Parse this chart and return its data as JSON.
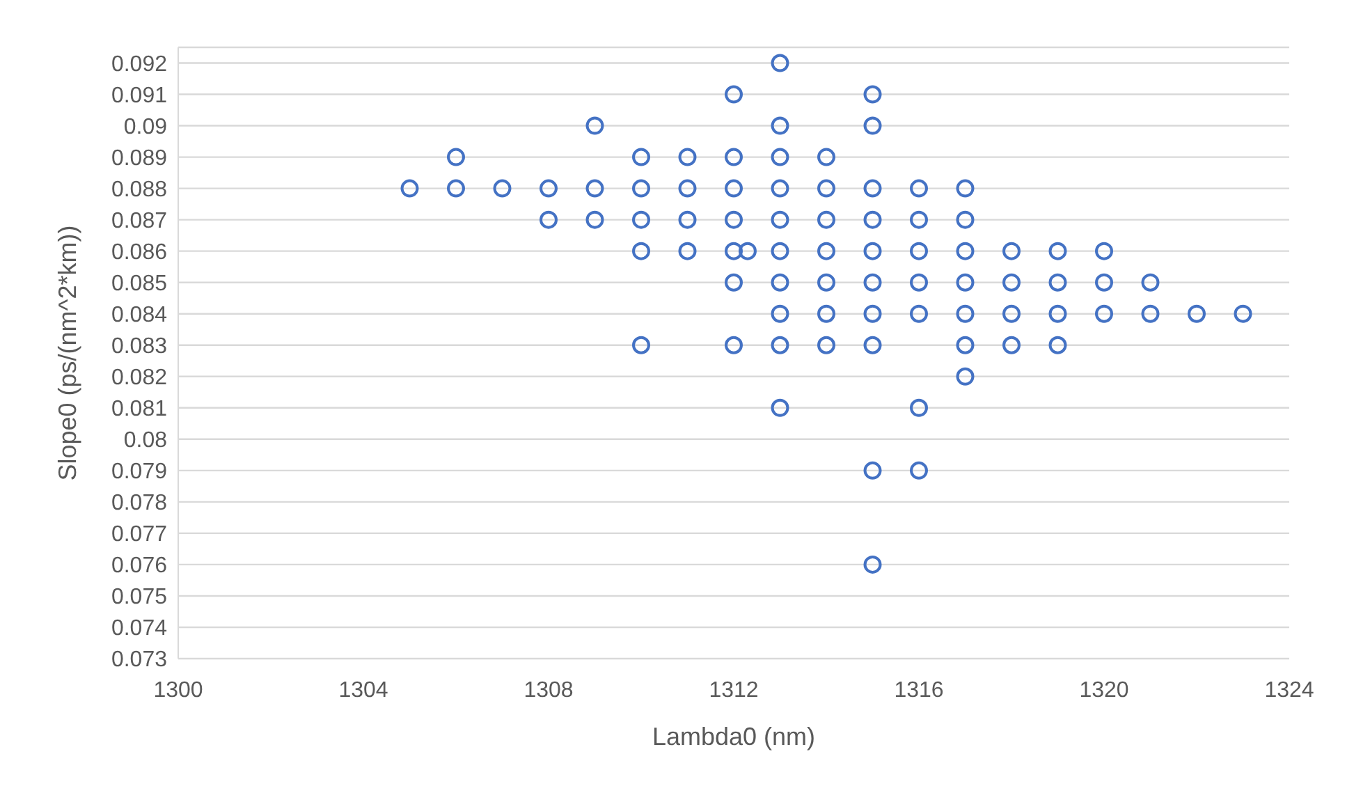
{
  "chart_data": {
    "type": "scatter",
    "xlabel": "Lambda0 (nm)",
    "ylabel": "Slope0 (ps/(nm^2*km))",
    "x": [
      1313,
      1312,
      1315,
      1309,
      1313,
      1315,
      1306,
      1310,
      1311,
      1312,
      1313,
      1314,
      1305,
      1306,
      1307,
      1308,
      1309,
      1310,
      1311,
      1312,
      1313,
      1314,
      1315,
      1316,
      1317,
      1308,
      1309,
      1310,
      1311,
      1312,
      1313,
      1314,
      1315,
      1316,
      1317,
      1310,
      1311,
      1312,
      1312.3,
      1313,
      1314,
      1315,
      1316,
      1317,
      1318,
      1319,
      1320,
      1312,
      1313,
      1314,
      1315,
      1316,
      1317,
      1318,
      1319,
      1320,
      1321,
      1313,
      1314,
      1315,
      1316,
      1317,
      1318,
      1319,
      1320,
      1321,
      1322,
      1323,
      1310,
      1312,
      1313,
      1314,
      1315,
      1317,
      1318,
      1319,
      1317,
      1313,
      1316,
      1315,
      1316,
      1315
    ],
    "series": [
      {
        "color": "#4472c4",
        "values": [
          0.092,
          0.091,
          0.091,
          0.09,
          0.09,
          0.09,
          0.089,
          0.089,
          0.089,
          0.089,
          0.089,
          0.089,
          0.088,
          0.088,
          0.088,
          0.088,
          0.088,
          0.088,
          0.088,
          0.088,
          0.088,
          0.088,
          0.088,
          0.088,
          0.088,
          0.087,
          0.087,
          0.087,
          0.087,
          0.087,
          0.087,
          0.087,
          0.087,
          0.087,
          0.087,
          0.086,
          0.086,
          0.086,
          0.086,
          0.086,
          0.086,
          0.086,
          0.086,
          0.086,
          0.086,
          0.086,
          0.086,
          0.085,
          0.085,
          0.085,
          0.085,
          0.085,
          0.085,
          0.085,
          0.085,
          0.085,
          0.085,
          0.084,
          0.084,
          0.084,
          0.084,
          0.084,
          0.084,
          0.084,
          0.084,
          0.084,
          0.084,
          0.084,
          0.083,
          0.083,
          0.083,
          0.083,
          0.083,
          0.083,
          0.083,
          0.083,
          0.082,
          0.081,
          0.081,
          0.079,
          0.079,
          0.076
        ]
      }
    ],
    "xlim": [
      1300,
      1324
    ],
    "xticks": [
      1300,
      1304,
      1308,
      1312,
      1316,
      1320,
      1324
    ],
    "ylim": [
      0.073,
      0.0925
    ],
    "yticks": [
      0.073,
      0.074,
      0.075,
      0.076,
      0.077,
      0.078,
      0.079,
      0.08,
      0.081,
      0.082,
      0.083,
      0.084,
      0.085,
      0.086,
      0.087,
      0.088,
      0.089,
      0.09,
      0.091,
      0.092
    ],
    "grid": "y",
    "marker": "circle",
    "legend": false
  }
}
